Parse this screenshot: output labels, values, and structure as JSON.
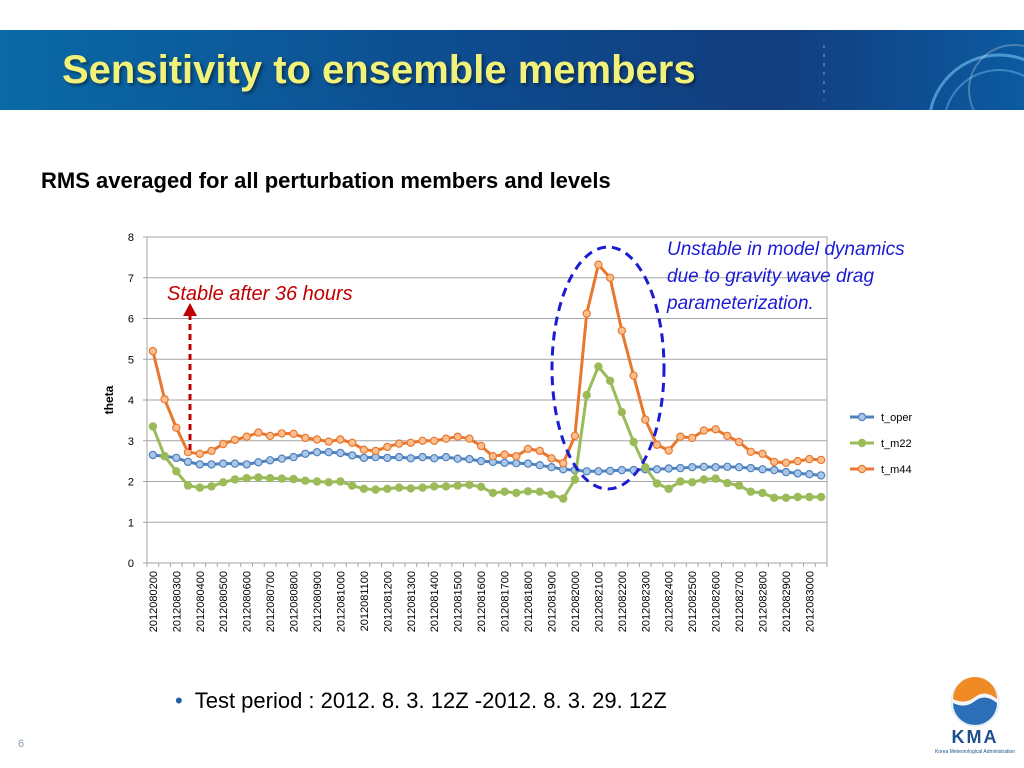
{
  "header": {
    "title": "Sensitivity to ensemble members"
  },
  "subtitle": "RMS averaged for all perturbation members and levels",
  "bullet": {
    "symbol": "•",
    "text": "Test period : 2012. 8. 3. 12Z -2012. 8. 3. 29. 12Z"
  },
  "page_number": "6",
  "logo": {
    "text": "KMA",
    "subtext": "Korea Meteorological Administration"
  },
  "annotations": {
    "stable": "Stable after 36 hours",
    "unstable": [
      "Unstable in model dynamics",
      "due to gravity wave drag",
      "parameterization."
    ]
  },
  "colors": {
    "header_bg": "#0d4c8f",
    "title": "#f2f27a",
    "red_annotation": "#c00000",
    "blue_annotation": "#1b1bd6"
  },
  "chart_data": {
    "type": "line",
    "title": "",
    "xlabel": "",
    "ylabel": "theta",
    "ylim": [
      0,
      8
    ],
    "yticks": [
      0,
      1,
      2,
      3,
      4,
      5,
      6,
      7,
      8
    ],
    "grid": true,
    "legend_position": "right",
    "x_count": 58,
    "x_tick_labels": [
      "2012080200",
      "2012080300",
      "2012080400",
      "2012080500",
      "2012080600",
      "2012080700",
      "2012080800",
      "2012080900",
      "2012081000",
      "2012081100",
      "2012081200",
      "2012081300",
      "2012081400",
      "2012081500",
      "2012081600",
      "2012081700",
      "2012081800",
      "2012081900",
      "2012082000",
      "2012082100",
      "2012082200",
      "2012082300",
      "2012082400",
      "2012082500",
      "2012082600",
      "2012082700",
      "2012082800",
      "2012082900",
      "2012083000"
    ],
    "series": [
      {
        "name": "t_oper",
        "color": "#4f81bd",
        "fill": "#a9c6e8",
        "values": [
          2.65,
          2.62,
          2.58,
          2.48,
          2.42,
          2.42,
          2.44,
          2.44,
          2.42,
          2.47,
          2.52,
          2.56,
          2.6,
          2.68,
          2.72,
          2.72,
          2.7,
          2.64,
          2.58,
          2.6,
          2.58,
          2.6,
          2.57,
          2.6,
          2.57,
          2.6,
          2.56,
          2.55,
          2.5,
          2.48,
          2.46,
          2.45,
          2.44,
          2.4,
          2.35,
          2.3,
          2.28,
          2.25,
          2.25,
          2.26,
          2.28,
          2.28,
          2.3,
          2.3,
          2.32,
          2.33,
          2.35,
          2.36,
          2.35,
          2.36,
          2.35,
          2.33,
          2.3,
          2.28,
          2.23,
          2.2,
          2.18,
          2.15
        ]
      },
      {
        "name": "t_m22",
        "color": "#9bbb59",
        "fill": "#9bbb59",
        "values": [
          3.35,
          2.62,
          2.25,
          1.9,
          1.85,
          1.88,
          1.98,
          2.05,
          2.08,
          2.1,
          2.08,
          2.07,
          2.06,
          2.02,
          2.0,
          1.98,
          2.0,
          1.9,
          1.82,
          1.8,
          1.82,
          1.85,
          1.83,
          1.85,
          1.88,
          1.88,
          1.9,
          1.92,
          1.87,
          1.72,
          1.75,
          1.72,
          1.76,
          1.75,
          1.68,
          1.58,
          2.05,
          4.12,
          4.82,
          4.47,
          3.7,
          2.97,
          2.35,
          1.95,
          1.82,
          2.0,
          1.98,
          2.05,
          2.07,
          1.96,
          1.9,
          1.75,
          1.72,
          1.6,
          1.6,
          1.62,
          1.62,
          1.62
        ]
      },
      {
        "name": "t_m44",
        "color": "#e9782f",
        "fill": "#fbbf8f",
        "values": [
          5.2,
          4.02,
          3.32,
          2.72,
          2.68,
          2.75,
          2.92,
          3.02,
          3.1,
          3.2,
          3.12,
          3.18,
          3.17,
          3.07,
          3.03,
          2.98,
          3.03,
          2.95,
          2.78,
          2.75,
          2.85,
          2.93,
          2.95,
          3.0,
          3.0,
          3.05,
          3.1,
          3.05,
          2.87,
          2.62,
          2.66,
          2.62,
          2.8,
          2.75,
          2.57,
          2.45,
          3.12,
          6.12,
          7.32,
          7.0,
          5.7,
          4.6,
          3.52,
          2.9,
          2.76,
          3.1,
          3.07,
          3.25,
          3.28,
          3.12,
          2.97,
          2.73,
          2.68,
          2.48,
          2.46,
          2.5,
          2.55,
          2.53
        ]
      }
    ]
  }
}
